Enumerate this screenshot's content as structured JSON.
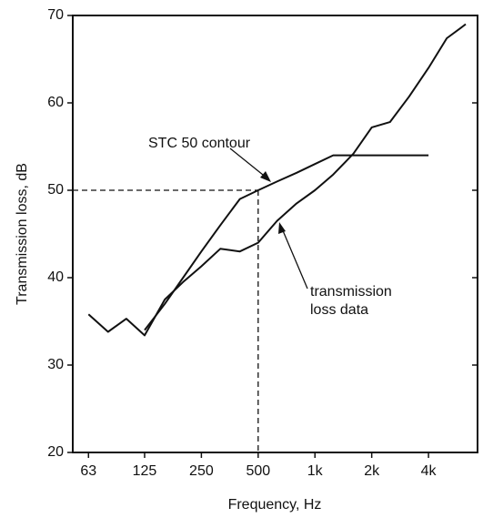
{
  "chart_data": {
    "type": "line",
    "x_label": "Frequency,  Hz",
    "y_label": "Transmission loss, dB",
    "log_x": true,
    "xlim": [
      52,
      7280
    ],
    "xticks": [
      63,
      125,
      250,
      500,
      {
        "value": 1000,
        "label": "1k"
      },
      {
        "value": 2000,
        "label": "2k"
      },
      {
        "value": 4000,
        "label": "4k"
      }
    ],
    "ylim": [
      20,
      70
    ],
    "yticks": [
      20,
      30,
      40,
      50,
      60,
      70
    ],
    "series": [
      {
        "name": "transmission loss data",
        "color": "#111111",
        "x": [
          63,
          80,
          100,
          125,
          160,
          200,
          250,
          315,
          400,
          500,
          630,
          800,
          1000,
          1250,
          1600,
          2000,
          2500,
          3150,
          4000,
          5000,
          6300
        ],
        "values": [
          35.8,
          33.8,
          35.3,
          33.4,
          37.5,
          39.5,
          41.3,
          43.3,
          43,
          44,
          46.5,
          48.5,
          50,
          51.8,
          54.2,
          57.2,
          57.8,
          60.7,
          64,
          67.4,
          69
        ]
      },
      {
        "name": "STC 50 contour",
        "color": "#111111",
        "x": [
          125,
          160,
          200,
          250,
          315,
          400,
          500,
          630,
          800,
          1000,
          1250,
          1600,
          2000,
          2500,
          3150,
          4000
        ],
        "values": [
          34,
          37,
          40,
          43,
          46,
          49,
          50,
          51,
          52,
          53,
          54,
          54,
          54,
          54,
          54,
          54
        ]
      }
    ],
    "annotations": [
      {
        "text": [
          "STC 50 contour"
        ]
      },
      {
        "text": [
          "transmission",
          "loss data"
        ]
      }
    ],
    "reference": {
      "x": 500,
      "y": 50
    }
  }
}
